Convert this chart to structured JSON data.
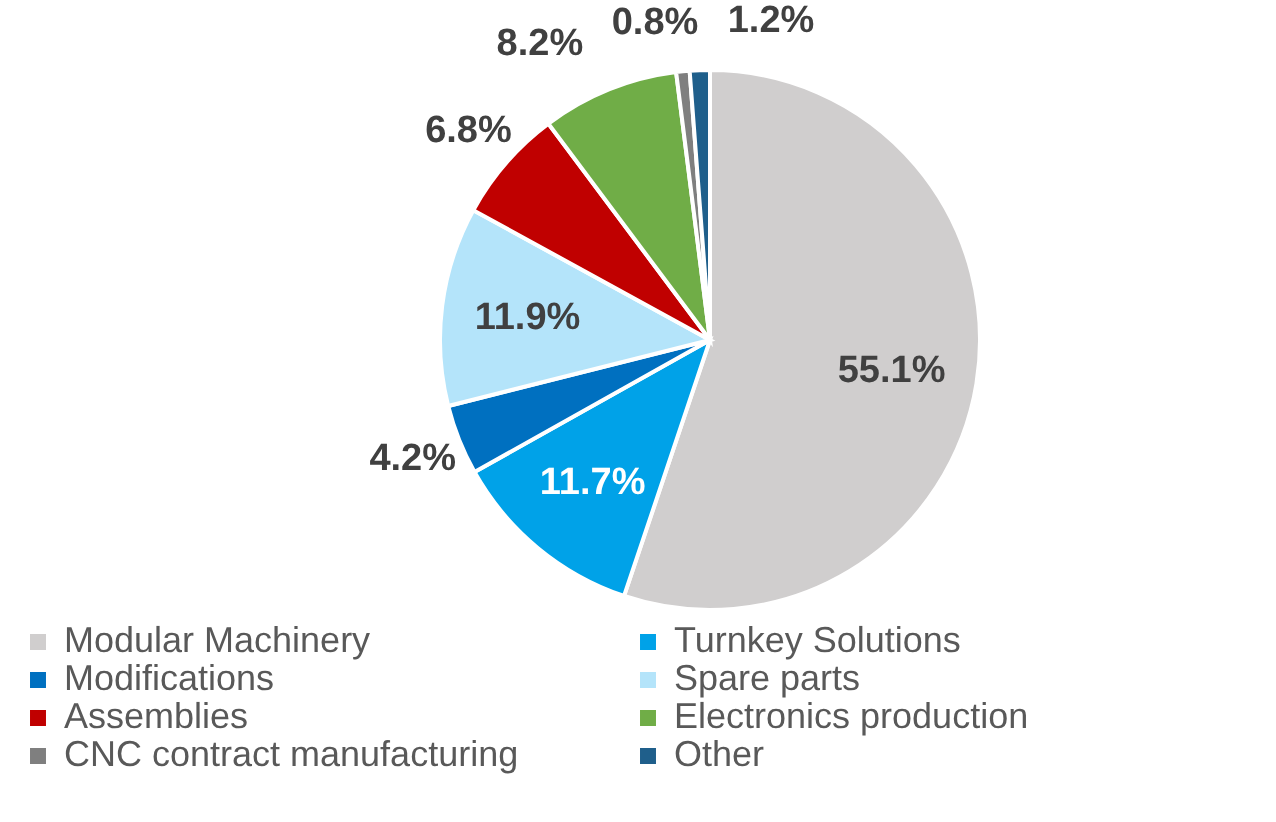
{
  "chart_data": {
    "type": "pie",
    "categories": [
      "Modular Machinery",
      "Turnkey Solutions",
      "Modifications",
      "Spare parts",
      "Assemblies",
      "Electronics production",
      "CNC contract manufacturing",
      "Other"
    ],
    "values": [
      55.1,
      11.7,
      4.2,
      11.9,
      6.8,
      8.2,
      0.8,
      1.2
    ],
    "colors": [
      "#d0cece",
      "#00a2e8",
      "#0070c0",
      "#b4e4fa",
      "#c00000",
      "#70ad47",
      "#7f7f7f",
      "#1f5f8b"
    ],
    "value_labels": [
      "55.1%",
      "11.7%",
      "4.2%",
      "11.9%",
      "6.8%",
      "8.2%",
      "0.8%",
      "1.2%"
    ],
    "legend": "bottom"
  }
}
